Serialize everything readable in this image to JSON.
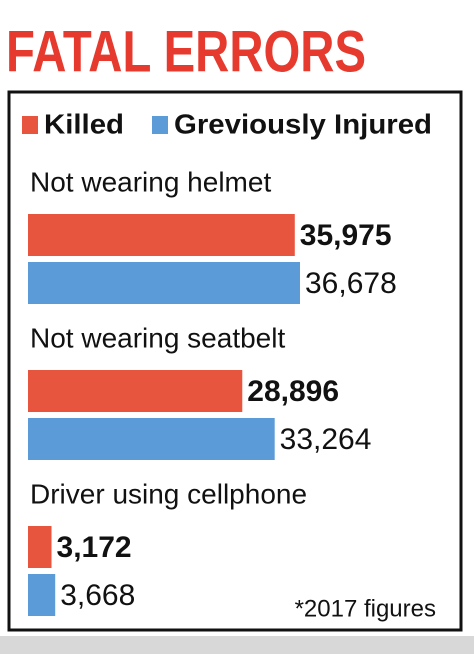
{
  "chart_data": {
    "type": "hbar",
    "title": "FATAL ERRORS",
    "categories": [
      "Not wearing helmet",
      "Not wearing seatbelt",
      "Driver using cellphone"
    ],
    "series": [
      {
        "name": "Killed",
        "color": "#e8553e",
        "values": [
          35975,
          28896,
          3172
        ],
        "value_labels": [
          "35,975",
          "28,896",
          "3,172"
        ]
      },
      {
        "name": "Greviously Injured",
        "color": "#5a9bd8",
        "values": [
          36678,
          33264,
          3668
        ],
        "value_labels": [
          "36,678",
          "33,264",
          "3,668"
        ]
      }
    ],
    "footnote": "*2017 figures"
  }
}
